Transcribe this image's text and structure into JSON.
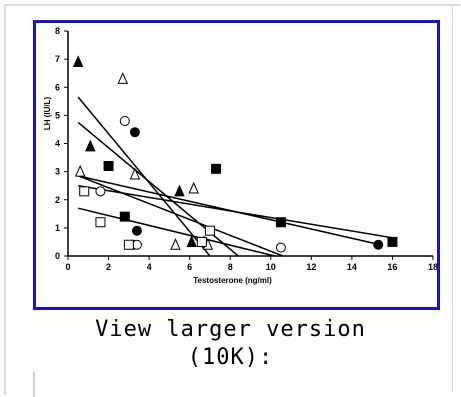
{
  "caption": {
    "line1": "View larger version",
    "line2": "(10K):"
  },
  "chart_data": {
    "type": "scatter",
    "title": "",
    "xlabel": "Testosterone (ng/ml)",
    "ylabel": "LH (IU/L)",
    "xlim": [
      0,
      18
    ],
    "ylim": [
      0,
      8
    ],
    "x_ticks": [
      "0",
      "2",
      "4",
      "6",
      "8",
      "10",
      "12",
      "14",
      "16",
      "18"
    ],
    "y_ticks": [
      "0",
      "1",
      "2",
      "3",
      "4",
      "5",
      "6",
      "7",
      "8"
    ],
    "grid": false,
    "legend": "none",
    "series": [
      {
        "marker": "filled-triangle",
        "points": [
          [
            0.5,
            6.9
          ],
          [
            1.1,
            3.9
          ],
          [
            5.5,
            2.3
          ],
          [
            6.1,
            0.5
          ],
          [
            6.7,
            0.5
          ]
        ],
        "fit": [
          [
            0.5,
            4.75
          ],
          [
            8.4,
            0
          ]
        ]
      },
      {
        "marker": "open-triangle",
        "points": [
          [
            0.6,
            3.0
          ],
          [
            2.7,
            6.3
          ],
          [
            3.3,
            2.9
          ],
          [
            5.3,
            0.4
          ],
          [
            6.2,
            2.4
          ],
          [
            6.9,
            0.4
          ]
        ],
        "fit": [
          [
            0.5,
            5.65
          ],
          [
            7.0,
            0
          ]
        ]
      },
      {
        "marker": "open-circle",
        "points": [
          [
            1.6,
            2.3
          ],
          [
            2.8,
            4.8
          ],
          [
            3.2,
            0.4
          ],
          [
            3.4,
            0.4
          ],
          [
            10.5,
            0.3
          ]
        ],
        "fit": [
          [
            0.5,
            2.85
          ],
          [
            10.6,
            0
          ]
        ]
      },
      {
        "marker": "filled-circle",
        "points": [
          [
            3.3,
            4.4
          ],
          [
            3.4,
            0.9
          ],
          [
            15.3,
            0.4
          ]
        ],
        "fit": [
          [
            0.5,
            2.85
          ],
          [
            15.4,
            0.4
          ]
        ]
      },
      {
        "marker": "open-square",
        "points": [
          [
            0.8,
            2.3
          ],
          [
            1.6,
            1.2
          ],
          [
            3.0,
            0.4
          ],
          [
            6.6,
            0.5
          ],
          [
            7.0,
            0.9
          ]
        ],
        "fit": [
          [
            0.5,
            1.7
          ],
          [
            10.2,
            0
          ]
        ]
      },
      {
        "marker": "filled-square",
        "points": [
          [
            2.0,
            3.2
          ],
          [
            2.8,
            1.4
          ],
          [
            7.3,
            3.1
          ],
          [
            10.5,
            1.2
          ],
          [
            16.0,
            0.5
          ]
        ],
        "fit": [
          [
            0.5,
            2.5
          ],
          [
            16.0,
            0.65
          ]
        ]
      }
    ]
  }
}
